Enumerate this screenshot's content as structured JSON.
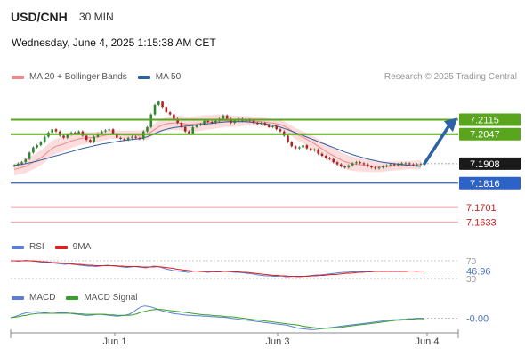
{
  "header": {
    "symbol": "USD/CNH",
    "timeframe": "30 MIN",
    "datetime": "Wednesday, June 4, 2025 1:15:38 AM CET",
    "copyright": "Research © 2025 Trading Central"
  },
  "legend_main": [
    {
      "label": "MA 20 + Bollinger Bands",
      "color": "#f08a8a"
    },
    {
      "label": "MA 50",
      "color": "#2f5f9e"
    }
  ],
  "legend_rsi": [
    {
      "label": "RSI",
      "color": "#5b7fd6"
    },
    {
      "label": "9MA",
      "color": "#e02020"
    }
  ],
  "legend_macd": [
    {
      "label": "MACD",
      "color": "#5b7fd6"
    },
    {
      "label": "MACD Signal",
      "color": "#3aa02c"
    }
  ],
  "colors": {
    "resistance": "#5aa51e",
    "support": "#2d63c8",
    "target": "#f0a0a0",
    "arrow": "#2d63a6",
    "bollinger": "#f9d2d2",
    "ma20": "#f08a8a",
    "ma50": "#2f5f9e",
    "candle_up": "#2c8a2c",
    "candle_down": "#b32020"
  },
  "chart_data": [
    {
      "type": "candlestick",
      "title": "USD/CNH 30 MIN",
      "x_ticks": [
        "Jun 1",
        "Jun 3",
        "Jun 4"
      ],
      "ylim": [
        7.158,
        7.226
      ],
      "last_price": "7.1908",
      "levels": [
        {
          "label": "7.2115",
          "value": 7.2115,
          "kind": "resistance"
        },
        {
          "label": "7.2047",
          "value": 7.2047,
          "kind": "resistance"
        },
        {
          "label": "7.1908",
          "value": 7.1908,
          "kind": "last"
        },
        {
          "label": "7.1816",
          "value": 7.1816,
          "kind": "support"
        },
        {
          "label": "7.1701",
          "value": 7.1701,
          "kind": "target"
        },
        {
          "label": "7.1633",
          "value": 7.1633,
          "kind": "target"
        }
      ],
      "closes": [
        7.19,
        7.1908,
        7.1915,
        7.193,
        7.196,
        7.1985,
        7.1995,
        7.201,
        7.2035,
        7.2055,
        7.207,
        7.206,
        7.204,
        7.203,
        7.2045,
        7.2055,
        7.205,
        7.206,
        7.204,
        7.202,
        7.201,
        7.2035,
        7.205,
        7.206,
        7.2065,
        7.207,
        7.205,
        7.203,
        7.2025,
        7.202,
        7.203,
        7.2035,
        7.203,
        7.2025,
        7.206,
        7.208,
        7.214,
        7.2185,
        7.22,
        7.2175,
        7.215,
        7.214,
        7.212,
        7.21,
        7.208,
        7.206,
        7.205,
        7.208,
        7.209,
        7.2095,
        7.211,
        7.2105,
        7.21,
        7.211,
        7.212,
        7.2135,
        7.212,
        7.21,
        7.211,
        7.212,
        7.211,
        7.2115,
        7.211,
        7.21,
        7.2095,
        7.21,
        7.209,
        7.208,
        7.2085,
        7.207,
        7.206,
        7.204,
        7.201,
        7.199,
        7.198,
        7.1985,
        7.1995,
        7.198,
        7.197,
        7.1975,
        7.1955,
        7.1945,
        7.1935,
        7.193,
        7.1915,
        7.1905,
        7.1895,
        7.189,
        7.19,
        7.191,
        7.1915,
        7.191,
        7.1905,
        7.1895,
        7.189,
        7.1885,
        7.189,
        7.1895,
        7.19,
        7.1905,
        7.19,
        7.1905,
        7.191,
        7.191,
        7.1905,
        7.19,
        7.1905,
        7.1908
      ],
      "ma20": [
        7.188,
        7.1885,
        7.189,
        7.1895,
        7.1905,
        7.1915,
        7.1925,
        7.1935,
        7.195,
        7.1965,
        7.198,
        7.199,
        7.1995,
        7.2,
        7.2008,
        7.2015,
        7.202,
        7.2025,
        7.2028,
        7.203,
        7.203,
        7.2032,
        7.2035,
        7.2038,
        7.2042,
        7.2045,
        7.2046,
        7.2045,
        7.2044,
        7.2043,
        7.2043,
        7.2043,
        7.2042,
        7.2041,
        7.2043,
        7.2047,
        7.2058,
        7.207,
        7.2082,
        7.209,
        7.2095,
        7.2098,
        7.21,
        7.21,
        7.2098,
        7.2095,
        7.2092,
        7.2094,
        7.2096,
        7.2098,
        7.2101,
        7.2103,
        7.2104,
        7.2106,
        7.2108,
        7.211,
        7.211,
        7.2108,
        7.2108,
        7.2108,
        7.2108,
        7.2109,
        7.2109,
        7.2108,
        7.2107,
        7.2106,
        7.2104,
        7.2101,
        7.2099,
        7.2096,
        7.2092,
        7.2085,
        7.2075,
        7.2063,
        7.205,
        7.204,
        7.2032,
        7.2022,
        7.2012,
        7.2002,
        7.199,
        7.1978,
        7.1966,
        7.1955,
        7.1945,
        7.1935,
        7.1926,
        7.1918,
        7.1912,
        7.1908,
        7.1905,
        7.1903,
        7.1901,
        7.1899,
        7.1897,
        7.1895,
        7.1894,
        7.1894,
        7.1895,
        7.1896,
        7.1897,
        7.1898,
        7.1899,
        7.19,
        7.1901,
        7.1901,
        7.1902,
        7.1903
      ],
      "ma50": [
        7.19,
        7.1902,
        7.1905,
        7.1908,
        7.1912,
        7.1916,
        7.192,
        7.1925,
        7.193,
        7.1935,
        7.194,
        7.1945,
        7.195,
        7.1955,
        7.196,
        7.1965,
        7.197,
        7.1975,
        7.198,
        7.1984,
        7.1988,
        7.1992,
        7.1996,
        7.2,
        7.2003,
        7.2006,
        7.2009,
        7.2012,
        7.2015,
        7.2018,
        7.202,
        7.2022,
        7.2024,
        7.2026,
        7.203,
        7.2035,
        7.2042,
        7.205,
        7.2058,
        7.2065,
        7.207,
        7.2074,
        7.2078,
        7.208,
        7.2082,
        7.2084,
        7.2086,
        7.2088,
        7.209,
        7.2092,
        7.2094,
        7.2096,
        7.2098,
        7.21,
        7.2102,
        7.2104,
        7.2105,
        7.2106,
        7.2106,
        7.2106,
        7.2106,
        7.2105,
        7.2104,
        7.2102,
        7.21,
        7.2098,
        7.2095,
        7.2092,
        7.2089,
        7.2085,
        7.208,
        7.2074,
        7.2068,
        7.2061,
        7.2054,
        7.2047,
        7.204,
        7.2033,
        7.2026,
        7.2019,
        7.2012,
        7.2005,
        7.1998,
        7.1991,
        7.1984,
        7.1977,
        7.197,
        7.1963,
        7.1957,
        7.1951,
        7.1945,
        7.194,
        7.1935,
        7.193,
        7.1926,
        7.1922,
        7.1918,
        7.1915,
        7.1912,
        7.191,
        7.1908,
        7.1906,
        7.1904,
        7.1902,
        7.19,
        7.1898,
        7.1896,
        7.1895
      ]
    },
    {
      "type": "line",
      "title": "RSI",
      "ylim": [
        20,
        80
      ],
      "levels": [
        70,
        30
      ],
      "last_value": "46.96",
      "series": [
        {
          "name": "RSI",
          "values": [
            70,
            70,
            69,
            70,
            71,
            70,
            69,
            68,
            67,
            66,
            66,
            65,
            64,
            63,
            62,
            63,
            62,
            61,
            60,
            59,
            58,
            58,
            57,
            58,
            59,
            60,
            59,
            58,
            57,
            56,
            55,
            56,
            57,
            56,
            55,
            54,
            56,
            58,
            57,
            55,
            52,
            50,
            48,
            47,
            46,
            45,
            44,
            46,
            47,
            46,
            45,
            44,
            45,
            46,
            46,
            47,
            46,
            45,
            44,
            44,
            43,
            42,
            41,
            40,
            38,
            37,
            36,
            36,
            35,
            35,
            36,
            34,
            34,
            35,
            34,
            34,
            35,
            36,
            37,
            38,
            38,
            39,
            40,
            41,
            42,
            43,
            44,
            44,
            45,
            45,
            46,
            46,
            47,
            47,
            46,
            46,
            47,
            46,
            46,
            47,
            47,
            46,
            46,
            47,
            47,
            46,
            47,
            47
          ]
        },
        {
          "name": "9MA",
          "values": [
            70,
            70,
            70,
            70,
            70,
            70,
            70,
            69,
            68,
            68,
            67,
            66,
            66,
            65,
            64,
            64,
            63,
            62,
            62,
            61,
            60,
            60,
            59,
            59,
            59,
            59,
            59,
            59,
            58,
            58,
            57,
            57,
            57,
            57,
            56,
            56,
            56,
            56,
            57,
            56,
            55,
            54,
            53,
            51,
            50,
            49,
            48,
            47,
            47,
            46,
            46,
            46,
            46,
            45,
            45,
            46,
            46,
            46,
            45,
            45,
            44,
            44,
            43,
            42,
            41,
            40,
            39,
            38,
            37,
            37,
            36,
            36,
            35,
            35,
            35,
            35,
            35,
            35,
            36,
            36,
            37,
            37,
            38,
            39,
            39,
            40,
            41,
            42,
            42,
            43,
            44,
            44,
            45,
            45,
            46,
            46,
            46,
            46,
            46,
            46,
            46,
            46,
            46,
            47,
            47,
            47,
            47,
            47
          ]
        }
      ]
    },
    {
      "type": "line",
      "title": "MACD",
      "last_value": "-0.00",
      "series": [
        {
          "name": "MACD",
          "values": [
            0.1,
            0.3,
            0.6,
            0.9,
            1.1,
            1.2,
            1.3,
            1.3,
            1.2,
            1.1,
            1.0,
            1.0,
            1.1,
            1.2,
            1.1,
            1.0,
            0.9,
            0.8,
            0.7,
            0.6,
            0.6,
            0.7,
            0.8,
            0.8,
            0.7,
            0.6,
            0.5,
            0.4,
            0.5,
            0.6,
            0.8,
            1.2,
            1.8,
            2.3,
            2.5,
            2.4,
            2.2,
            1.9,
            1.6,
            1.4,
            1.2,
            1.0,
            0.9,
            0.8,
            0.7,
            0.6,
            0.6,
            0.5,
            0.5,
            0.4,
            0.4,
            0.3,
            0.3,
            0.2,
            0.2,
            0.1,
            0.0,
            -0.1,
            -0.2,
            -0.3,
            -0.4,
            -0.5,
            -0.6,
            -0.7,
            -0.8,
            -0.9,
            -1.0,
            -1.1,
            -1.2,
            -1.3,
            -1.4,
            -1.6,
            -1.8,
            -2.0,
            -2.1,
            -2.2,
            -2.3,
            -2.3,
            -2.2,
            -2.1,
            -2.0,
            -1.9,
            -1.8,
            -1.7,
            -1.6,
            -1.5,
            -1.4,
            -1.3,
            -1.2,
            -1.1,
            -1.0,
            -0.9,
            -0.8,
            -0.7,
            -0.6,
            -0.5,
            -0.4,
            -0.3,
            -0.3,
            -0.2,
            -0.2,
            -0.1,
            -0.1,
            0.0,
            0.0,
            0.0
          ]
        },
        {
          "name": "MACD Signal",
          "values": [
            0.1,
            0.2,
            0.3,
            0.5,
            0.6,
            0.8,
            0.9,
            1.0,
            1.0,
            1.0,
            1.0,
            1.0,
            1.0,
            1.0,
            1.0,
            1.0,
            1.0,
            0.9,
            0.9,
            0.8,
            0.8,
            0.8,
            0.8,
            0.8,
            0.8,
            0.7,
            0.7,
            0.6,
            0.6,
            0.6,
            0.6,
            0.7,
            0.9,
            1.2,
            1.4,
            1.6,
            1.7,
            1.8,
            1.8,
            1.7,
            1.6,
            1.5,
            1.4,
            1.3,
            1.2,
            1.1,
            1.0,
            0.9,
            0.8,
            0.7,
            0.7,
            0.6,
            0.5,
            0.5,
            0.4,
            0.3,
            0.3,
            0.2,
            0.1,
            0.0,
            -0.1,
            -0.2,
            -0.3,
            -0.4,
            -0.5,
            -0.6,
            -0.7,
            -0.8,
            -0.9,
            -1.0,
            -1.1,
            -1.2,
            -1.3,
            -1.4,
            -1.6,
            -1.7,
            -1.8,
            -1.9,
            -2.0,
            -2.0,
            -2.0,
            -2.0,
            -1.9,
            -1.9,
            -1.8,
            -1.7,
            -1.6,
            -1.5,
            -1.4,
            -1.3,
            -1.2,
            -1.1,
            -1.0,
            -0.9,
            -0.8,
            -0.7,
            -0.6,
            -0.5,
            -0.4,
            -0.4,
            -0.3,
            -0.2,
            -0.2,
            -0.1,
            -0.1,
            -0.1
          ]
        }
      ]
    }
  ]
}
